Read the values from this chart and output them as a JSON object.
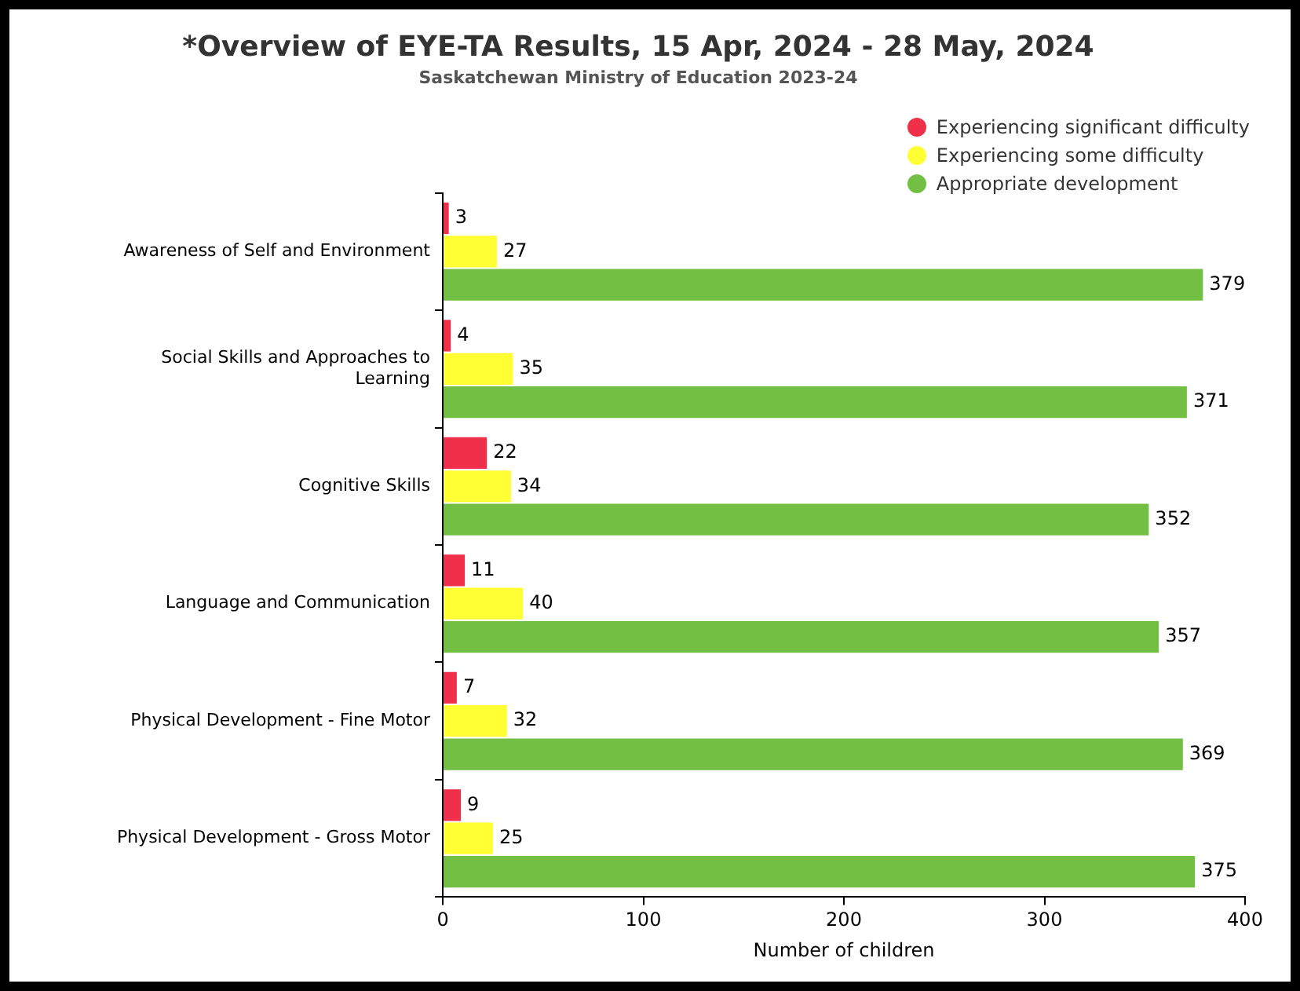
{
  "chart_data": {
    "type": "bar",
    "orientation": "horizontal",
    "title": "*Overview of EYE-TA Results, 15 Apr, 2024 - 28 May, 2024",
    "subtitle": "Saskatchewan Ministry of Education 2023-24",
    "xlabel": "Number of children",
    "categories": [
      "Awareness of Self and Environment",
      "Social Skills and Approaches to Learning",
      "Cognitive Skills",
      "Language and Communication",
      "Physical Development - Fine Motor",
      "Physical Development - Gross Motor"
    ],
    "series": [
      {
        "name": "Experiencing significant difficulty",
        "color": "#f0304a",
        "values": [
          3,
          4,
          22,
          11,
          7,
          9
        ]
      },
      {
        "name": "Experiencing some difficulty",
        "color": "#ffff33",
        "values": [
          27,
          35,
          34,
          40,
          32,
          25
        ]
      },
      {
        "name": "Appropriate development",
        "color": "#72bf44",
        "values": [
          379,
          371,
          352,
          357,
          369,
          375
        ]
      }
    ],
    "xlim": [
      0,
      400
    ],
    "xticks": [
      0,
      100,
      200,
      300,
      400
    ],
    "grid": false,
    "legend": "top right",
    "data_labels": true
  }
}
